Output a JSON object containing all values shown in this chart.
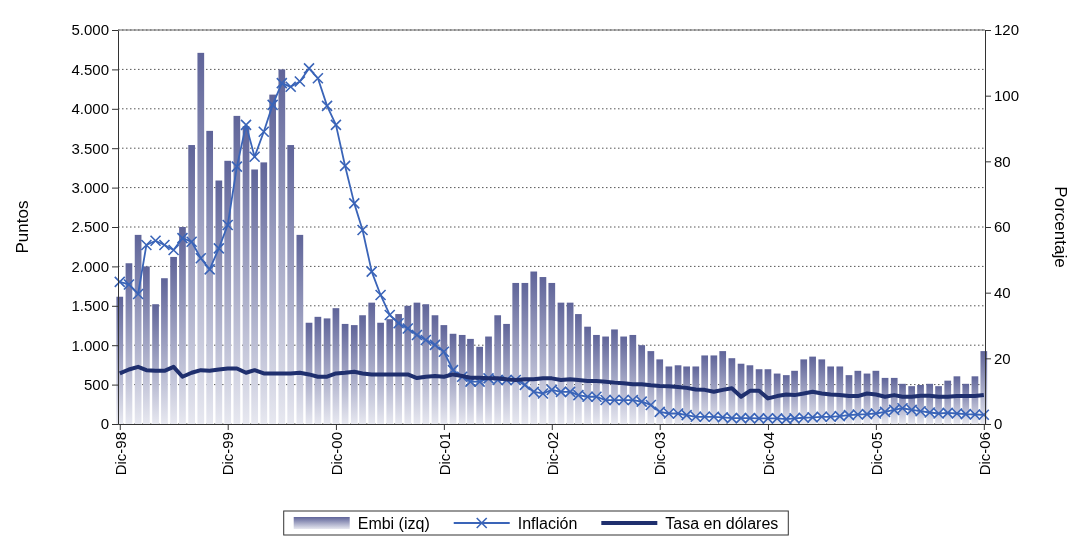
{
  "chart_data": {
    "type": "bar",
    "ylabel": "Puntos",
    "y2label": "Porcentaje",
    "x": [
      "1998-12",
      "1999-01",
      "1999-02",
      "1999-03",
      "1999-04",
      "1999-05",
      "1999-06",
      "1999-07",
      "1999-08",
      "1999-09",
      "1999-10",
      "1999-11",
      "1999-12",
      "2000-01",
      "2000-02",
      "2000-03",
      "2000-04",
      "2000-05",
      "2000-06",
      "2000-07",
      "2000-08",
      "2000-09",
      "2000-10",
      "2000-11",
      "2000-12",
      "2001-01",
      "2001-02",
      "2001-03",
      "2001-04",
      "2001-05",
      "2001-06",
      "2001-07",
      "2001-08",
      "2001-09",
      "2001-10",
      "2001-11",
      "2001-12",
      "2002-01",
      "2002-02",
      "2002-03",
      "2002-04",
      "2002-05",
      "2002-06",
      "2002-07",
      "2002-08",
      "2002-09",
      "2002-10",
      "2002-11",
      "2002-12",
      "2003-01",
      "2003-02",
      "2003-03",
      "2003-04",
      "2003-05",
      "2003-06",
      "2003-07",
      "2003-08",
      "2003-09",
      "2003-10",
      "2003-11",
      "2003-12",
      "2004-01",
      "2004-02",
      "2004-03",
      "2004-04",
      "2004-05",
      "2004-06",
      "2004-07",
      "2004-08",
      "2004-09",
      "2004-10",
      "2004-11",
      "2004-12",
      "2005-01",
      "2005-02",
      "2005-03",
      "2005-04",
      "2005-05",
      "2005-06",
      "2005-07",
      "2005-08",
      "2005-09",
      "2005-10",
      "2005-11",
      "2005-12",
      "2006-01",
      "2006-02",
      "2006-03",
      "2006-04",
      "2006-05",
      "2006-06",
      "2006-07",
      "2006-08",
      "2006-09",
      "2006-10",
      "2006-11",
      "2006-12"
    ],
    "xlim": [
      "1998-11-25",
      "2006-12-05"
    ],
    "xticks": [
      {
        "value": "1998-12",
        "label": "Dic-98"
      },
      {
        "value": "1999-12",
        "label": "Dic-99"
      },
      {
        "value": "2000-12",
        "label": "Dic-00"
      },
      {
        "value": "2001-12",
        "label": "Dic-01"
      },
      {
        "value": "2002-12",
        "label": "Dic-02"
      },
      {
        "value": "2003-12",
        "label": "Dic-03"
      },
      {
        "value": "2004-12",
        "label": "Dic-04"
      },
      {
        "value": "2005-12",
        "label": "Dic-05"
      },
      {
        "value": "2006-12",
        "label": "Dic-06"
      }
    ],
    "ylim": [
      0,
      5000
    ],
    "yticks": [
      0,
      500,
      {
        "value": 1000,
        "label": "1.000"
      },
      {
        "value": 1500,
        "label": "1.500"
      },
      {
        "value": 2000,
        "label": "2.000"
      },
      {
        "value": 2500,
        "label": "2.500"
      },
      {
        "value": 3000,
        "label": "3.000"
      },
      {
        "value": 3500,
        "label": "3.500"
      },
      {
        "value": 4000,
        "label": "4.000"
      },
      {
        "value": 4500,
        "label": "4.500"
      },
      {
        "value": 5000,
        "label": "5.000"
      }
    ],
    "y2lim": [
      0,
      120
    ],
    "y2ticks": [
      0,
      20,
      40,
      60,
      80,
      100,
      120
    ],
    "grid": "y",
    "legend": "bottom",
    "series": [
      {
        "name": "Embi (izq)",
        "color": "#5f6499",
        "values": [
          1615,
          2040,
          2400,
          2000,
          1520,
          1850,
          2120,
          2500,
          3540,
          4710,
          3720,
          3090,
          3340,
          3910,
          3780,
          3230,
          3320,
          4180,
          4500,
          3540,
          2400,
          1285,
          1360,
          1340,
          1470,
          1270,
          1255,
          1380,
          1540,
          1285,
          1330,
          1395,
          1500,
          1540,
          1520,
          1380,
          1255,
          1145,
          1130,
          1080,
          980,
          1110,
          1380,
          1270,
          1790,
          1790,
          1935,
          1865,
          1790,
          1540,
          1540,
          1395,
          1235,
          1130,
          1110,
          1200,
          1110,
          1130,
          1000,
          925,
          820,
          730,
          745,
          730,
          730,
          870,
          870,
          925,
          835,
          765,
          745,
          695,
          695,
          640,
          620,
          675,
          820,
          855,
          820,
          730,
          730,
          620,
          675,
          640,
          675,
          585,
          585,
          510,
          480,
          495,
          510,
          480,
          550,
          605,
          510,
          605,
          925
        ]
      },
      {
        "name": "Inflación",
        "type": "line",
        "axis": "y2",
        "marker": "cross",
        "color": "#3a64b8",
        "values": [
          43.3,
          42.5,
          39.6,
          54.5,
          55.8,
          54.5,
          53.0,
          56.6,
          55.5,
          50.5,
          47.1,
          53.5,
          60.6,
          78.4,
          91.1,
          81.4,
          89.0,
          97.2,
          103.8,
          102.7,
          104.3,
          108.3,
          105.3,
          96.9,
          91.1,
          78.6,
          67.2,
          59.1,
          46.4,
          39.3,
          33.2,
          30.7,
          29.1,
          27.1,
          25.6,
          24.1,
          22.0,
          16.4,
          14.4,
          12.9,
          12.9,
          13.9,
          13.4,
          13.4,
          13.4,
          11.9,
          9.8,
          9.3,
          10.4,
          9.8,
          9.8,
          8.8,
          8.3,
          8.3,
          7.3,
          7.3,
          7.3,
          7.3,
          6.8,
          5.8,
          3.7,
          3.2,
          3.2,
          2.7,
          2.2,
          2.2,
          2.2,
          2.0,
          1.8,
          1.8,
          1.8,
          1.7,
          1.7,
          1.7,
          1.5,
          1.7,
          1.9,
          2.0,
          2.2,
          2.2,
          2.4,
          2.7,
          2.9,
          3.0,
          3.2,
          3.7,
          4.3,
          4.8,
          4.3,
          3.9,
          3.5,
          3.2,
          3.4,
          3.2,
          3.0,
          2.9,
          2.8
        ]
      },
      {
        "name": "Tasa en dólares",
        "type": "line",
        "axis": "y2",
        "marker": "none",
        "color": "#1f2f6e",
        "values": [
          15.4,
          16.6,
          17.4,
          16.4,
          16.2,
          16.2,
          17.4,
          14.4,
          15.6,
          16.4,
          16.2,
          16.6,
          16.9,
          16.9,
          15.6,
          16.4,
          15.4,
          15.4,
          15.4,
          15.4,
          15.6,
          15.1,
          14.4,
          14.4,
          15.4,
          15.6,
          15.9,
          15.4,
          15.1,
          15.1,
          15.1,
          15.1,
          15.1,
          14.0,
          14.4,
          14.6,
          14.4,
          15.1,
          14.6,
          14.1,
          14.1,
          13.9,
          13.9,
          13.6,
          13.4,
          13.6,
          13.6,
          13.9,
          13.9,
          13.4,
          13.6,
          13.4,
          13.1,
          13.1,
          12.9,
          12.6,
          12.4,
          12.1,
          12.1,
          11.8,
          11.6,
          11.5,
          11.3,
          11.0,
          10.5,
          10.4,
          9.8,
          10.4,
          10.9,
          8.3,
          10.1,
          10.1,
          7.8,
          8.5,
          9.0,
          8.8,
          9.3,
          9.8,
          9.3,
          9.0,
          8.8,
          8.5,
          8.5,
          9.3,
          9.0,
          8.3,
          8.8,
          8.3,
          8.3,
          8.6,
          8.6,
          8.3,
          8.3,
          8.5,
          8.5,
          8.5,
          8.8
        ]
      }
    ]
  }
}
